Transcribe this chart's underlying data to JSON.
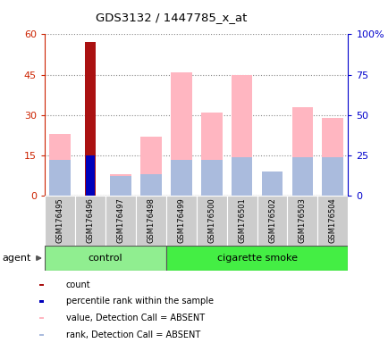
{
  "title": "GDS3132 / 1447785_x_at",
  "samples": [
    "GSM176495",
    "GSM176496",
    "GSM176497",
    "GSM176498",
    "GSM176499",
    "GSM176500",
    "GSM176501",
    "GSM176502",
    "GSM176503",
    "GSM176504"
  ],
  "n_control": 4,
  "n_smoke": 6,
  "value_absent": [
    23,
    0,
    8,
    22,
    46,
    31,
    45,
    9,
    33,
    29
  ],
  "rank_absent_pct": [
    22,
    0,
    12,
    13,
    22,
    22,
    24,
    15,
    24,
    24
  ],
  "count_values": [
    0,
    57,
    0,
    0,
    0,
    0,
    0,
    0,
    0,
    0
  ],
  "percentile_values": [
    0,
    25,
    0,
    0,
    0,
    0,
    0,
    0,
    0,
    0
  ],
  "ylim_left": [
    0,
    60
  ],
  "ylim_right": [
    0,
    100
  ],
  "yticks_left": [
    0,
    15,
    30,
    45,
    60
  ],
  "yticks_right": [
    0,
    25,
    50,
    75,
    100
  ],
  "yticklabels_left": [
    "0",
    "15",
    "30",
    "45",
    "60"
  ],
  "yticklabels_right": [
    "0",
    "25",
    "50",
    "75",
    "100%"
  ],
  "color_count": "#AA1111",
  "color_percentile": "#0000BB",
  "color_value_absent": "#FFB6C1",
  "color_rank_absent": "#AABBDD",
  "axis_left_color": "#CC2200",
  "axis_right_color": "#0000CC",
  "legend_items": [
    "count",
    "percentile rank within the sample",
    "value, Detection Call = ABSENT",
    "rank, Detection Call = ABSENT"
  ]
}
